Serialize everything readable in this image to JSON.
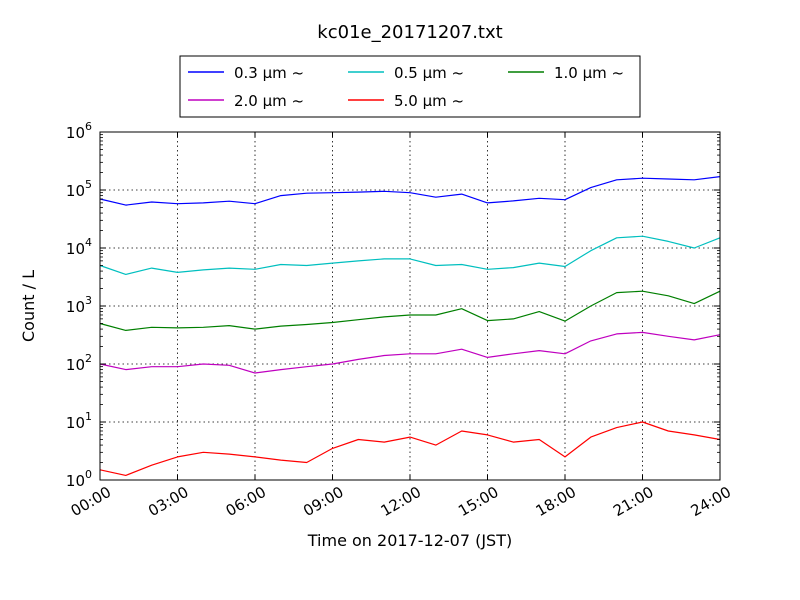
{
  "chart_data": {
    "type": "line",
    "title": "kc01e_20171207.txt",
    "xlabel": "Time on 2017-12-07 (JST)",
    "ylabel": "Count / L",
    "x_range": [
      0,
      24
    ],
    "x_ticks": [
      "00:00",
      "03:00",
      "06:00",
      "09:00",
      "12:00",
      "15:00",
      "18:00",
      "21:00",
      "24:00"
    ],
    "y_scale": "log",
    "y_range": [
      1,
      1000000
    ],
    "y_ticks": [
      {
        "base": "10",
        "exp": "0"
      },
      {
        "base": "10",
        "exp": "1"
      },
      {
        "base": "10",
        "exp": "2"
      },
      {
        "base": "10",
        "exp": "3"
      },
      {
        "base": "10",
        "exp": "4"
      },
      {
        "base": "10",
        "exp": "5"
      },
      {
        "base": "10",
        "exp": "6"
      }
    ],
    "grid": true,
    "legend_position": "top-center",
    "x_hours": [
      0,
      1,
      2,
      3,
      4,
      5,
      6,
      7,
      8,
      9,
      10,
      11,
      12,
      13,
      14,
      15,
      16,
      17,
      18,
      19,
      20,
      21,
      22,
      23,
      24
    ],
    "series": [
      {
        "name": "0.3 μm ~",
        "color": "#0000ff",
        "values": [
          70000,
          55000,
          62000,
          58000,
          60000,
          64000,
          58000,
          80000,
          88000,
          90000,
          92000,
          95000,
          90000,
          75000,
          85000,
          60000,
          65000,
          72000,
          68000,
          110000,
          150000,
          160000,
          155000,
          150000,
          170000
        ]
      },
      {
        "name": "0.5 μm ~",
        "color": "#00bfbf",
        "values": [
          5000,
          3500,
          4500,
          3800,
          4200,
          4500,
          4300,
          5200,
          5000,
          5500,
          6000,
          6500,
          6500,
          5000,
          5200,
          4300,
          4600,
          5500,
          4800,
          9000,
          15000,
          16000,
          13000,
          10000,
          15000
        ]
      },
      {
        "name": "1.0 μm ~",
        "color": "#007f00",
        "values": [
          500,
          380,
          430,
          420,
          430,
          460,
          400,
          450,
          480,
          520,
          580,
          650,
          700,
          700,
          900,
          560,
          600,
          800,
          550,
          1000,
          1700,
          1800,
          1500,
          1100,
          1800
        ]
      },
      {
        "name": "2.0 μm ~",
        "color": "#bf00bf",
        "values": [
          100,
          80,
          90,
          90,
          100,
          95,
          70,
          80,
          90,
          100,
          120,
          140,
          150,
          150,
          180,
          130,
          150,
          170,
          150,
          250,
          330,
          350,
          300,
          260,
          320
        ]
      },
      {
        "name": "5.0 μm ~",
        "color": "#ff0000",
        "values": [
          1.5,
          1.2,
          1.8,
          2.5,
          3,
          2.8,
          2.5,
          2.2,
          2,
          3.5,
          5,
          4.5,
          5.5,
          4,
          7,
          6,
          4.5,
          5,
          2.5,
          5.5,
          8,
          10,
          7,
          6,
          5
        ]
      }
    ]
  }
}
